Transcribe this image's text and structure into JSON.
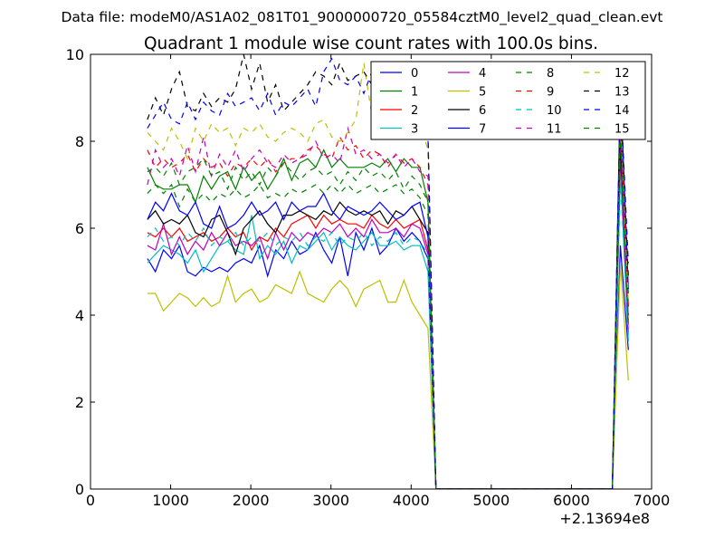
{
  "figure": {
    "suptitle": "Data file: modeM0/AS1A02_081T01_9000000720_05584cztM0_level2_quad_clean.evt"
  },
  "chart_data": {
    "type": "line",
    "title": "Quadrant 1 module wise count rates with 100.0s bins.",
    "xlabel": "",
    "ylabel": "",
    "x_offset_label": "+2.13694e8",
    "xlim": [
      0,
      7000
    ],
    "ylim": [
      0,
      10
    ],
    "xticks": [
      0,
      1000,
      2000,
      3000,
      4000,
      5000,
      6000,
      7000
    ],
    "yticks": [
      0,
      2,
      4,
      6,
      8,
      10
    ],
    "grid": false,
    "legend": {
      "placement": "top-right",
      "columns": 4
    },
    "x": [
      710,
      810,
      910,
      1010,
      1110,
      1210,
      1310,
      1410,
      1510,
      1610,
      1710,
      1810,
      1910,
      2010,
      2110,
      2210,
      2310,
      2410,
      2510,
      2610,
      2710,
      2810,
      2910,
      3010,
      3110,
      3210,
      3310,
      3410,
      3510,
      3610,
      3710,
      3810,
      3910,
      4010,
      4110,
      4210,
      4310,
      4410,
      4510,
      4610,
      4710,
      4810,
      4910,
      5010,
      5110,
      5210,
      5310,
      5410,
      5510,
      5610,
      5710,
      5810,
      5910,
      6010,
      6110,
      6210,
      6310,
      6410,
      6510,
      6610,
      6710
    ],
    "series": [
      {
        "name": "0",
        "color": "#0000ff",
        "dash": "solid",
        "values": [
          5.3,
          5.0,
          5.5,
          5.3,
          5.6,
          5.0,
          4.9,
          5.1,
          5.0,
          5.1,
          5.0,
          5.2,
          5.3,
          5.2,
          5.6,
          4.9,
          5.5,
          5.3,
          5.7,
          5.4,
          5.5,
          5.9,
          5.5,
          5.2,
          5.8,
          4.9,
          5.9,
          5.5,
          6.0,
          5.4,
          5.6,
          6.0,
          5.7,
          5.9,
          5.7,
          5.3,
          0,
          0,
          0,
          0,
          0,
          0,
          0,
          0,
          0,
          0,
          0,
          0,
          0,
          0,
          0,
          0,
          0,
          0,
          0,
          0,
          0,
          0,
          0,
          5.6,
          3.2
        ]
      },
      {
        "name": "1",
        "color": "#008000",
        "dash": "solid",
        "values": [
          7.4,
          7.0,
          6.9,
          6.9,
          7.0,
          7.0,
          6.6,
          7.2,
          6.9,
          7.2,
          7.3,
          6.9,
          7.4,
          7.1,
          7.3,
          6.9,
          7.2,
          7.6,
          7.1,
          7.5,
          7.6,
          7.4,
          7.8,
          7.4,
          7.6,
          7.4,
          7.4,
          7.4,
          7.5,
          7.4,
          7.6,
          7.3,
          7.6,
          7.4,
          7.4,
          6.6,
          0,
          0,
          0,
          0,
          0,
          0,
          0,
          0,
          0,
          0,
          0,
          0,
          0,
          0,
          0,
          0,
          0,
          0,
          0,
          0,
          0,
          0,
          0,
          7.6,
          4.5
        ]
      },
      {
        "name": "2",
        "color": "#ff0000",
        "dash": "solid",
        "values": [
          5.9,
          5.8,
          6.0,
          5.8,
          6.0,
          5.7,
          5.8,
          5.9,
          5.7,
          5.8,
          6.0,
          5.8,
          5.9,
          5.5,
          5.8,
          5.7,
          6.0,
          5.8,
          6.1,
          6.2,
          6.3,
          6.0,
          6.3,
          6.1,
          6.2,
          6.1,
          6.1,
          6.0,
          6.3,
          6.1,
          6.0,
          6.2,
          6.0,
          6.1,
          6.2,
          5.5,
          0,
          0,
          0,
          0,
          0,
          0,
          0,
          0,
          0,
          0,
          0,
          0,
          0,
          0,
          0,
          0,
          0,
          0,
          0,
          0,
          0,
          0,
          0,
          8.2,
          3.8
        ]
      },
      {
        "name": "3",
        "color": "#00bfbf",
        "dash": "solid",
        "values": [
          5.2,
          5.4,
          5.6,
          5.5,
          5.4,
          5.2,
          5.5,
          5.0,
          5.3,
          5.6,
          5.7,
          5.5,
          5.4,
          6.3,
          5.3,
          5.6,
          5.4,
          5.7,
          5.2,
          5.6,
          5.5,
          5.7,
          5.9,
          5.5,
          5.8,
          5.6,
          5.5,
          5.7,
          5.9,
          5.6,
          5.6,
          5.7,
          5.5,
          5.6,
          5.6,
          5.0,
          0,
          0,
          0,
          0,
          0,
          0,
          0,
          0,
          0,
          0,
          0,
          0,
          0,
          0,
          0,
          0,
          0,
          0,
          0,
          0,
          0,
          0,
          0,
          7.3,
          3.4
        ]
      },
      {
        "name": "4",
        "color": "#bf00bf",
        "dash": "solid",
        "values": [
          5.6,
          5.5,
          6.1,
          5.4,
          5.8,
          5.4,
          5.7,
          5.5,
          5.9,
          5.6,
          5.9,
          5.6,
          5.7,
          5.6,
          5.8,
          5.3,
          5.9,
          5.5,
          5.9,
          5.7,
          5.9,
          5.8,
          6.0,
          5.9,
          6.1,
          5.8,
          6.0,
          5.8,
          6.2,
          5.9,
          5.9,
          6.0,
          5.8,
          6.1,
          6.0,
          5.4,
          0,
          0,
          0,
          0,
          0,
          0,
          0,
          0,
          0,
          0,
          0,
          0,
          0,
          0,
          0,
          0,
          0,
          0,
          0,
          0,
          0,
          0,
          0,
          7.8,
          3.6
        ]
      },
      {
        "name": "5",
        "color": "#bfbf00",
        "dash": "solid",
        "values": [
          4.5,
          4.5,
          4.1,
          4.3,
          4.5,
          4.4,
          4.2,
          4.4,
          4.2,
          4.3,
          4.9,
          4.3,
          4.5,
          4.6,
          4.3,
          4.4,
          4.7,
          4.6,
          4.5,
          5.0,
          4.5,
          4.4,
          4.3,
          4.6,
          4.8,
          4.6,
          4.2,
          4.6,
          4.7,
          4.8,
          4.3,
          4.3,
          4.8,
          4.3,
          4.0,
          3.7,
          0,
          0,
          0,
          0,
          0,
          0,
          0,
          0,
          0,
          0,
          0,
          0,
          0,
          0,
          0,
          0,
          0,
          0,
          0,
          0,
          0,
          0,
          0,
          5.2,
          2.5
        ]
      },
      {
        "name": "6",
        "color": "#000000",
        "dash": "solid",
        "values": [
          6.2,
          6.4,
          6.1,
          6.2,
          6.1,
          6.3,
          5.9,
          5.8,
          6.2,
          6.3,
          5.9,
          5.4,
          6.0,
          6.2,
          6.4,
          6.1,
          5.9,
          6.3,
          6.3,
          6.4,
          6.3,
          6.2,
          6.4,
          6.3,
          6.6,
          6.4,
          6.3,
          6.4,
          6.3,
          6.4,
          6.1,
          6.4,
          6.3,
          6.5,
          6.2,
          5.9,
          0,
          0,
          0,
          0,
          0,
          0,
          0,
          0,
          0,
          0,
          0,
          0,
          0,
          0,
          0,
          0,
          0,
          0,
          0,
          0,
          0,
          0,
          0,
          8.0,
          4.2
        ]
      },
      {
        "name": "7",
        "color": "#0000ff",
        "dash": "solid",
        "values": [
          6.2,
          6.6,
          6.4,
          6.8,
          6.4,
          6.3,
          6.6,
          6.1,
          6.0,
          6.5,
          6.0,
          6.1,
          6.3,
          6.6,
          6.3,
          6.4,
          6.6,
          6.2,
          6.6,
          6.4,
          6.5,
          6.5,
          6.8,
          6.4,
          6.2,
          6.5,
          6.4,
          6.3,
          6.4,
          6.6,
          6.4,
          6.2,
          6.3,
          6.5,
          6.6,
          5.8,
          0,
          0,
          0,
          0,
          0,
          0,
          0,
          0,
          0,
          0,
          0,
          0,
          0,
          0,
          0,
          0,
          0,
          0,
          0,
          0,
          0,
          0,
          0,
          9.3,
          4.6
        ]
      },
      {
        "name": "8",
        "color": "#008000",
        "dash": "dashed",
        "values": [
          6.8,
          7.0,
          6.8,
          7.0,
          6.5,
          6.9,
          6.6,
          6.8,
          6.6,
          6.8,
          6.7,
          6.9,
          6.7,
          6.8,
          7.0,
          6.7,
          6.8,
          6.7,
          6.9,
          6.8,
          6.9,
          7.0,
          6.8,
          7.0,
          6.8,
          7.0,
          6.8,
          6.9,
          7.0,
          6.8,
          6.9,
          7.0,
          6.8,
          6.9,
          6.7,
          6.3,
          0,
          0,
          0,
          0,
          0,
          0,
          0,
          0,
          0,
          0,
          0,
          0,
          0,
          0,
          0,
          0,
          0,
          0,
          0,
          0,
          0,
          0,
          0,
          8.7,
          4.0
        ]
      },
      {
        "name": "9",
        "color": "#ff0000",
        "dash": "dashed",
        "values": [
          7.8,
          7.4,
          7.6,
          7.4,
          7.5,
          7.7,
          7.3,
          7.6,
          7.4,
          7.5,
          7.2,
          7.5,
          7.4,
          7.6,
          7.4,
          7.6,
          7.3,
          7.5,
          7.6,
          7.6,
          7.8,
          7.9,
          7.7,
          7.6,
          8.1,
          7.8,
          7.9,
          7.6,
          7.8,
          7.7,
          7.4,
          7.7,
          7.5,
          7.6,
          7.4,
          7.0,
          0,
          0,
          0,
          0,
          0,
          0,
          0,
          0,
          0,
          0,
          0,
          0,
          0,
          0,
          0,
          0,
          0,
          0,
          0,
          0,
          0,
          0,
          0,
          8.5,
          4.1
        ]
      },
      {
        "name": "10",
        "color": "#00bfbf",
        "dash": "dashed",
        "values": [
          5.8,
          6.0,
          5.7,
          5.8,
          5.6,
          5.9,
          5.7,
          6.0,
          5.6,
          5.8,
          5.7,
          5.9,
          5.6,
          5.8,
          5.7,
          5.9,
          5.6,
          5.8,
          5.7,
          5.9,
          5.6,
          5.8,
          5.7,
          5.9,
          5.6,
          5.8,
          5.7,
          5.9,
          5.6,
          5.8,
          5.7,
          5.9,
          5.6,
          5.8,
          5.7,
          5.4,
          0,
          0,
          0,
          0,
          0,
          0,
          0,
          0,
          0,
          0,
          0,
          0,
          0,
          0,
          0,
          0,
          0,
          0,
          0,
          0,
          0,
          0,
          0,
          7.1,
          3.5
        ]
      },
      {
        "name": "11",
        "color": "#bf00bf",
        "dash": "dashed",
        "values": [
          7.0,
          7.8,
          7.4,
          7.6,
          7.2,
          7.9,
          7.3,
          8.1,
          7.2,
          7.7,
          7.4,
          7.8,
          7.3,
          7.6,
          7.8,
          7.5,
          7.4,
          7.7,
          7.5,
          7.6,
          7.7,
          8.0,
          7.6,
          7.7,
          7.5,
          8.3,
          7.7,
          7.8,
          7.6,
          7.7,
          7.5,
          7.7,
          7.4,
          7.6,
          7.3,
          7.2,
          0,
          0,
          0,
          0,
          0,
          0,
          0,
          0,
          0,
          0,
          0,
          0,
          0,
          0,
          0,
          0,
          0,
          0,
          0,
          0,
          0,
          0,
          0,
          8.3,
          3.9
        ]
      },
      {
        "name": "12",
        "color": "#bfbf00",
        "dash": "dashed",
        "values": [
          8.2,
          8.0,
          7.8,
          8.3,
          8.0,
          7.6,
          8.3,
          8.0,
          8.4,
          8.2,
          8.3,
          7.9,
          8.3,
          8.2,
          8.4,
          8.1,
          8.0,
          8.2,
          8.3,
          8.2,
          8.0,
          8.4,
          8.5,
          8.1,
          8.0,
          8.2,
          8.5,
          9.8,
          8.6,
          8.4,
          8.3,
          8.8,
          8.5,
          8.3,
          8.4,
          7.8,
          0,
          0,
          0,
          0,
          0,
          0,
          0,
          0,
          0,
          0,
          0,
          0,
          0,
          0,
          0,
          0,
          0,
          0,
          0,
          0,
          0,
          0,
          0,
          8.6,
          4.3
        ]
      },
      {
        "name": "13",
        "color": "#000000",
        "dash": "dashed",
        "values": [
          8.5,
          9.0,
          8.6,
          9.2,
          9.6,
          8.8,
          8.7,
          9.1,
          8.8,
          9.0,
          8.9,
          9.2,
          10.0,
          9.2,
          9.8,
          8.9,
          9.3,
          8.7,
          8.9,
          9.1,
          9.3,
          9.6,
          9.5,
          9.3,
          9.8,
          9.4,
          9.5,
          9.6,
          9.3,
          9.2,
          9.3,
          8.8,
          9.0,
          9.1,
          8.8,
          8.2,
          0,
          0,
          0,
          0,
          0,
          0,
          0,
          0,
          0,
          0,
          0,
          0,
          0,
          0,
          0,
          0,
          0,
          0,
          0,
          0,
          0,
          0,
          0,
          9.0,
          4.9
        ]
      },
      {
        "name": "14",
        "color": "#0000ff",
        "dash": "dashed",
        "values": [
          8.3,
          8.6,
          8.9,
          8.5,
          8.4,
          8.9,
          8.5,
          8.9,
          8.7,
          8.6,
          9.1,
          8.8,
          8.9,
          9.0,
          8.7,
          9.1,
          8.6,
          8.9,
          8.8,
          9.0,
          9.2,
          8.8,
          9.6,
          9.9,
          9.4,
          9.3,
          9.5,
          9.1,
          9.6,
          9.0,
          9.1,
          8.9,
          9.2,
          8.9,
          8.9,
          8.1,
          0,
          0,
          0,
          0,
          0,
          0,
          0,
          0,
          0,
          0,
          0,
          0,
          0,
          0,
          0,
          0,
          0,
          0,
          0,
          0,
          0,
          0,
          0,
          9.2,
          5.2
        ]
      },
      {
        "name": "15",
        "color": "#008000",
        "dash": "dashed",
        "values": [
          7.3,
          7.4,
          7.2,
          7.5,
          7.0,
          7.3,
          7.4,
          7.6,
          7.2,
          7.3,
          6.9,
          7.4,
          7.1,
          7.3,
          7.0,
          7.4,
          7.2,
          7.5,
          7.3,
          7.1,
          7.3,
          7.4,
          7.2,
          7.3,
          7.0,
          7.3,
          7.1,
          7.4,
          7.2,
          7.3,
          7.1,
          7.3,
          6.9,
          7.2,
          7.0,
          6.6,
          0,
          0,
          0,
          0,
          0,
          0,
          0,
          0,
          0,
          0,
          0,
          0,
          0,
          0,
          0,
          0,
          0,
          0,
          0,
          0,
          0,
          0,
          0,
          8.4,
          3.7
        ]
      }
    ]
  }
}
